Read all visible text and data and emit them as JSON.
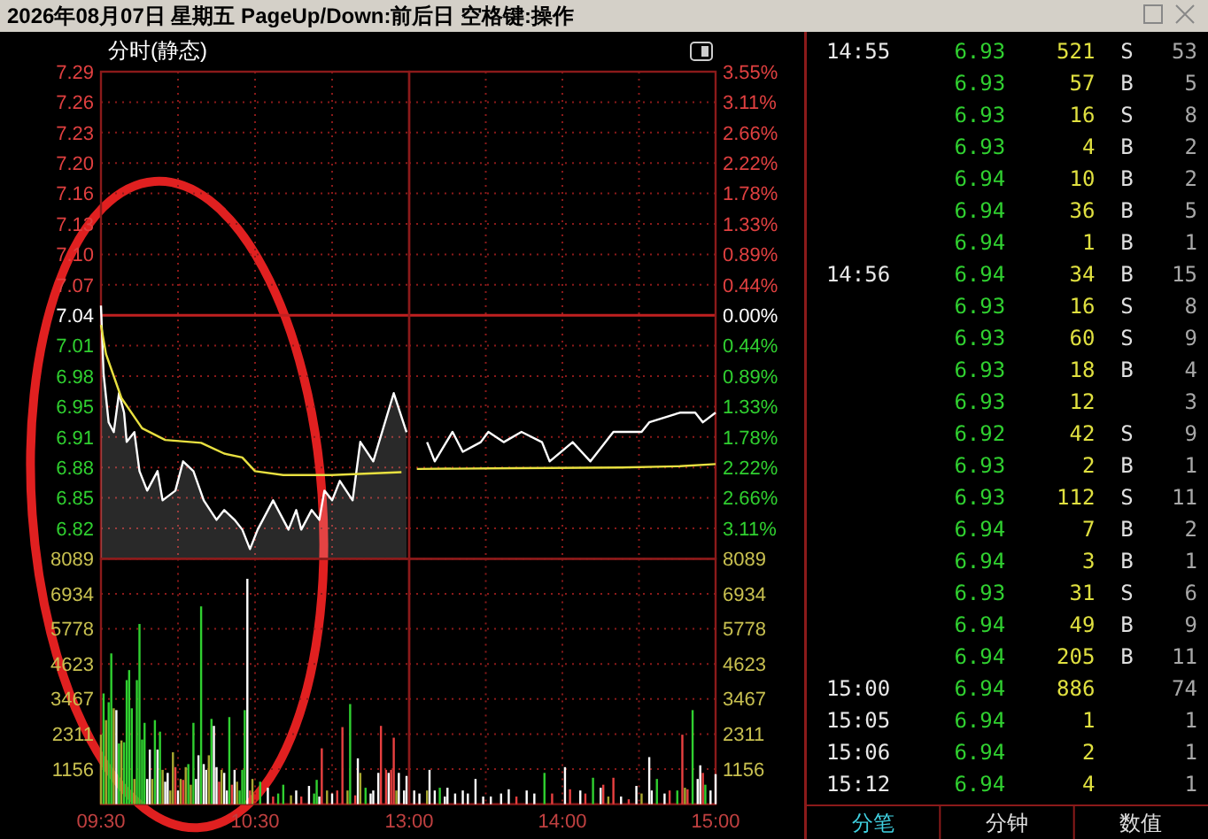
{
  "chart_data": [
    {
      "type": "area",
      "title": "2026年08月07日 星期五 PageUp/Down:前后日 空格键:操作",
      "subtitle": "分时(静态)",
      "grid": true,
      "tick_labels": "y",
      "xlim": [
        9.5,
        11.5
      ],
      "xticks": [
        {
          "value": 9.5,
          "label": null
        },
        {
          "value": 10,
          "label": null
        },
        {
          "value": 10.5,
          "label": null
        },
        {
          "value": 11,
          "label": null
        },
        {
          "value": 11.5,
          "label": null
        }
      ],
      "ylim": [
        6.79,
        7.29
      ],
      "yticks": [
        {
          "value": 7.29,
          "label": "7.29"
        },
        {
          "value": 7.25875,
          "label": "7.26"
        },
        {
          "value": 7.2275,
          "label": "7.23"
        },
        {
          "value": 7.19625,
          "label": "7.20"
        },
        {
          "value": 7.165,
          "label": "7.16"
        },
        {
          "value": 7.13375,
          "label": "7.13"
        },
        {
          "value": 7.1025,
          "label": "7.10"
        },
        {
          "value": 7.07125,
          "label": "7.07"
        },
        {
          "value": 7.04,
          "label": "7.04"
        },
        {
          "value": 7.00875,
          "label": "7.01"
        },
        {
          "value": 6.9775,
          "label": "6.98"
        },
        {
          "value": 6.94625,
          "label": "6.95"
        },
        {
          "value": 6.915,
          "label": "6.91"
        },
        {
          "value": 6.88375,
          "label": "6.88"
        },
        {
          "value": 6.8525,
          "label": "6.85"
        },
        {
          "value": 6.82125,
          "label": "6.82"
        }
      ],
      "ref_lines": [
        {
          "axis": "y",
          "value": 7.04,
          "color": "#c02020"
        }
      ],
      "series": [
        {
          "type": "area",
          "color": "#ffffff",
          "x": [
            9.5,
            9.517,
            9.55,
            9.583,
            9.617,
            9.65,
            9.667,
            9.717,
            9.75,
            9.8,
            9.867,
            9.9,
            9.983,
            10.033,
            10.1,
            10.167,
            10.25,
            10.3,
            10.367,
            10.417,
            10.467,
            10.517,
            10.617,
            10.65,
            10.717,
            10.767,
            10.8,
            10.867,
            10.917,
            10.95,
            11,
            11.05,
            11.133,
            11.183,
            11.267,
            11.4,
            11.483
          ],
          "values": [
            7.05,
            6.98,
            6.93,
            6.92,
            6.96,
            6.94,
            6.91,
            6.92,
            6.88,
            6.86,
            6.88,
            6.85,
            6.86,
            6.89,
            6.88,
            6.85,
            6.83,
            6.84,
            6.83,
            6.82,
            6.8,
            6.82,
            6.85,
            6.84,
            6.82,
            6.84,
            6.82,
            6.84,
            6.83,
            6.86,
            6.85,
            6.87,
            6.85,
            6.91,
            6.89,
            6.96,
            6.92
          ]
        },
        {
          "type": "line",
          "color": "#e8e040",
          "x": [
            9.5,
            9.533,
            9.633,
            9.767,
            9.917,
            10.15,
            10.3,
            10.417,
            10.5,
            10.683,
            11,
            11.45
          ],
          "values": [
            7.03,
            7.0,
            6.955,
            6.924,
            6.912,
            6.909,
            6.898,
            6.894,
            6.88,
            6.876,
            6.876,
            6.879
          ]
        }
      ]
    },
    {
      "type": "line",
      "grid": true,
      "tick_labels": "y",
      "xlim": [
        13,
        15
      ],
      "xticks": [
        {
          "value": 13,
          "label": null
        },
        {
          "value": 13.5,
          "label": null
        },
        {
          "value": 14,
          "label": null
        },
        {
          "value": 14.5,
          "label": null
        },
        {
          "value": 15,
          "label": null
        }
      ],
      "ylim": [
        -3.55,
        3.55
      ],
      "yticks": [
        {
          "value": 3.55,
          "label": "3.55%"
        },
        {
          "value": 3.10625,
          "label": "3.11%"
        },
        {
          "value": 2.6625,
          "label": "2.66%"
        },
        {
          "value": 2.21875,
          "label": "2.22%"
        },
        {
          "value": 1.775,
          "label": "1.78%"
        },
        {
          "value": 1.33125,
          "label": "1.33%"
        },
        {
          "value": 0.8875,
          "label": "0.89%"
        },
        {
          "value": 0.44375,
          "label": "0.44%"
        },
        {
          "value": 0,
          "label": "0.00%"
        },
        {
          "value": -0.44375,
          "label": "0.44%"
        },
        {
          "value": -0.8875,
          "label": "0.89%"
        },
        {
          "value": -1.33125,
          "label": "1.33%"
        },
        {
          "value": -1.775,
          "label": "1.78%"
        },
        {
          "value": -2.21875,
          "label": "2.22%"
        },
        {
          "value": -2.6625,
          "label": "2.66%"
        },
        {
          "value": -3.10625,
          "label": "3.11%"
        }
      ],
      "ref_lines": [
        {
          "axis": "y",
          "value": 0,
          "color": "#c02020"
        }
      ],
      "series": [
        {
          "type": "line",
          "color": "#ffffff",
          "x": [
            13.117,
            13.167,
            13.283,
            13.35,
            13.467,
            13.517,
            13.617,
            13.733,
            13.867,
            13.917,
            14.067,
            14.183,
            14.333,
            14.517,
            14.567,
            14.767,
            14.867,
            14.917,
            15
          ],
          "values": [
            -1.85,
            -2.13,
            -1.7,
            -1.99,
            -1.85,
            -1.7,
            -1.85,
            -1.7,
            -1.85,
            -2.13,
            -1.85,
            -2.13,
            -1.7,
            -1.7,
            -1.56,
            -1.42,
            -1.42,
            -1.56,
            -1.42
          ]
        },
        {
          "type": "line",
          "color": "#e8e040",
          "x": [
            13.05,
            13.683,
            14.383,
            14.767,
            15
          ],
          "values": [
            -2.24,
            -2.23,
            -2.22,
            -2.2,
            -2.17
          ]
        }
      ]
    },
    {
      "type": "bar",
      "grid": true,
      "xlim": [
        9.5,
        11.5
      ],
      "xticks": [
        {
          "value": 9.5,
          "label": "09:30"
        },
        {
          "value": 10,
          "label": null
        },
        {
          "value": 10.5,
          "label": "10:30"
        },
        {
          "value": 11,
          "label": null
        },
        {
          "value": 11.5,
          "label": null
        }
      ],
      "ylim": [
        0,
        8089
      ],
      "yticks": [
        8089,
        6934,
        5778,
        4623,
        3467,
        2311,
        1156
      ],
      "x": [
        9.5,
        9.517,
        9.533,
        9.55,
        9.567,
        9.583,
        9.6,
        9.617,
        9.633,
        9.65,
        9.667,
        9.683,
        9.7,
        9.717,
        9.733,
        9.75,
        9.767,
        9.783,
        9.8,
        9.817,
        9.833,
        9.85,
        9.867,
        9.883,
        9.9,
        9.917,
        9.933,
        9.95,
        9.967,
        9.983,
        10,
        10.017,
        10.033,
        10.05,
        10.067,
        10.083,
        10.1,
        10.117,
        10.133,
        10.15,
        10.167,
        10.183,
        10.2,
        10.217,
        10.233,
        10.25,
        10.267,
        10.283,
        10.3,
        10.317,
        10.333,
        10.35,
        10.367,
        10.383,
        10.4,
        10.417,
        10.433,
        10.45,
        10.467,
        10.483,
        10.533,
        10.583,
        10.617,
        10.65,
        10.683,
        10.733,
        10.767,
        10.8,
        10.85,
        10.883,
        10.9,
        10.917,
        10.933,
        10.967,
        11,
        11.033,
        11.067,
        11.1,
        11.117,
        11.15,
        11.167,
        11.183,
        11.217,
        11.25,
        11.267,
        11.3,
        11.317,
        11.35,
        11.367,
        11.383,
        11.4,
        11.417,
        11.433,
        11.467,
        11.483
      ],
      "values": [
        2290,
        3650,
        2770,
        3360,
        4970,
        3160,
        3100,
        2000,
        2100,
        2040,
        4090,
        4420,
        3160,
        830,
        4090,
        5940,
        2130,
        2680,
        830,
        1800,
        830,
        2770,
        1800,
        2390,
        1130,
        740,
        1030,
        450,
        1710,
        1220,
        450,
        830,
        800,
        1220,
        1320,
        640,
        2680,
        830,
        1610,
        6520,
        1320,
        1130,
        1610,
        2810,
        2580,
        1220,
        740,
        1130,
        1030,
        450,
        2870,
        640,
        1130,
        740,
        450,
        1130,
        3100,
        7430,
        450,
        830,
        740,
        540,
        250,
        350,
        640,
        290,
        450,
        250,
        600,
        350,
        800,
        250,
        1840,
        450,
        350,
        450,
        2540,
        450,
        3300,
        290,
        1510,
        1030,
        540,
        350,
        450,
        1030,
        2580,
        1130,
        1030,
        1130,
        2190,
        450,
        1030,
        450,
        930
      ],
      "colors": [
        "#a8a830",
        "#30d030",
        "#a8a830",
        "#30d030",
        "#30d030",
        "#a8a830",
        "#ffffff",
        "#30d030",
        "#a8a830",
        "#30d030",
        "#30d030",
        "#30d030",
        "#30d030",
        "#a8a830",
        "#30d030",
        "#30d030",
        "#30d030",
        "#30d030",
        "#ffffff",
        "#ffffff",
        "#a8a830",
        "#30d030",
        "#ffffff",
        "#30d030",
        "#a8a830",
        "#ffffff",
        "#ffffff",
        "#a8a830",
        "#a8a830",
        "#e84040",
        "#ffffff",
        "#a8a830",
        "#e84040",
        "#a8a830",
        "#30d030",
        "#a8a830",
        "#30d030",
        "#ffffff",
        "#ffffff",
        "#30d030",
        "#ffffff",
        "#ffffff",
        "#a8a830",
        "#30d030",
        "#ffffff",
        "#ffffff",
        "#e84040",
        "#a8a830",
        "#ffffff",
        "#ffffff",
        "#30d030",
        "#e84040",
        "#ffffff",
        "#a8a830",
        "#30d030",
        "#30d030",
        "#30d030",
        "#ffffff",
        "#e84040",
        "#a8a830",
        "#30d030",
        "#ffffff",
        "#e84040",
        "#30d030",
        "#30d030",
        "#a8a830",
        "#ffffff",
        "#e84040",
        "#ffffff",
        "#30d030",
        "#30d030",
        "#ffffff",
        "#e84040",
        "#a8a830",
        "#ffffff",
        "#e84040",
        "#e84040",
        "#a8a830",
        "#30d030",
        "#e84040",
        "#ffffff",
        "#a8a830",
        "#30d030",
        "#ffffff",
        "#ffffff",
        "#ffffff",
        "#e84040",
        "#e84040",
        "#ffffff",
        "#e84040",
        "#e84040",
        "#a8a830",
        "#ffffff",
        "#ffffff",
        "#ffffff"
      ]
    },
    {
      "type": "bar",
      "grid": true,
      "xlim": [
        13,
        15
      ],
      "xticks": [
        {
          "value": 13,
          "label": "13:00"
        },
        {
          "value": 13.5,
          "label": null
        },
        {
          "value": 14,
          "label": "14:00"
        },
        {
          "value": 14.5,
          "label": null
        },
        {
          "value": 15,
          "label": "15:00"
        }
      ],
      "ylim": [
        0,
        8089
      ],
      "yticks": [
        8089,
        6934,
        5778,
        4623,
        3467,
        2311,
        1156
      ],
      "x": [
        13.033,
        13.067,
        13.117,
        13.133,
        13.167,
        13.2,
        13.233,
        13.25,
        13.3,
        13.35,
        13.383,
        13.433,
        13.483,
        13.533,
        13.6,
        13.65,
        13.7,
        13.767,
        13.817,
        13.883,
        13.933,
        14.017,
        14.05,
        14.117,
        14.15,
        14.2,
        14.25,
        14.267,
        14.3,
        14.333,
        14.383,
        14.433,
        14.483,
        14.517,
        14.567,
        14.583,
        14.617,
        14.667,
        14.7,
        14.75,
        14.783,
        14.8,
        14.817,
        14.85,
        14.883,
        14.9,
        14.917,
        14.933,
        14.967,
        15
      ],
      "values": [
        450,
        350,
        450,
        1130,
        450,
        540,
        250,
        540,
        350,
        450,
        350,
        830,
        250,
        250,
        350,
        490,
        250,
        450,
        350,
        1030,
        350,
        1220,
        490,
        450,
        350,
        870,
        540,
        640,
        250,
        870,
        250,
        160,
        600,
        350,
        1550,
        450,
        830,
        350,
        450,
        450,
        2290,
        540,
        490,
        3100,
        830,
        1280,
        1030,
        640,
        450,
        990
      ],
      "colors": [
        "#ffffff",
        "#ffffff",
        "#a8a830",
        "#ffffff",
        "#ffffff",
        "#30d030",
        "#ffffff",
        "#ffffff",
        "#ffffff",
        "#ffffff",
        "#ffffff",
        "#ffffff",
        "#ffffff",
        "#ffffff",
        "#ffffff",
        "#ffffff",
        "#e84040",
        "#ffffff",
        "#ffffff",
        "#30d030",
        "#e84040",
        "#ffffff",
        "#e84040",
        "#ffffff",
        "#e84040",
        "#30d030",
        "#ffffff",
        "#e84040",
        "#a8a830",
        "#e84040",
        "#ffffff",
        "#e84040",
        "#ffffff",
        "#a8a830",
        "#ffffff",
        "#ffffff",
        "#30d030",
        "#ffffff",
        "#e84040",
        "#30d030",
        "#e84040",
        "#a8a830",
        "#e84040",
        "#30d030",
        "#ffffff",
        "#ffffff",
        "#e84040",
        "#30d030",
        "#ffffff",
        "#ffffff"
      ]
    },
    {
      "type": "other",
      "annotations": [
        "14:55     6.93    521  S   53",
        "6.93     57  B    5",
        "6.93     16  S    8",
        "6.93      4  B    2",
        "6.94     10  B    2",
        "6.94     36  B    5",
        "6.94      1  B    1",
        "14:56     6.94     34  B   15",
        "6.93     16  S    8",
        "6.93     60  S    9",
        "6.93     18  B    4",
        "6.93     12       3",
        "6.92     42  S    9",
        "6.93      2  B    1",
        "6.93    112  S   11",
        "6.94      7  B    2",
        "6.94      3  B    1",
        "6.93     31  S    6",
        "6.94     49  B    9",
        "6.94    205  B   11",
        "15:00     6.94    886      74",
        "15:05     6.94      1       1",
        "15:06     6.94      2       1",
        "15:12     6.94      4       1"
      ]
    },
    {
      "type": "other",
      "annotations": [
        "分笔",
        "分钟",
        "数值"
      ]
    }
  ]
}
